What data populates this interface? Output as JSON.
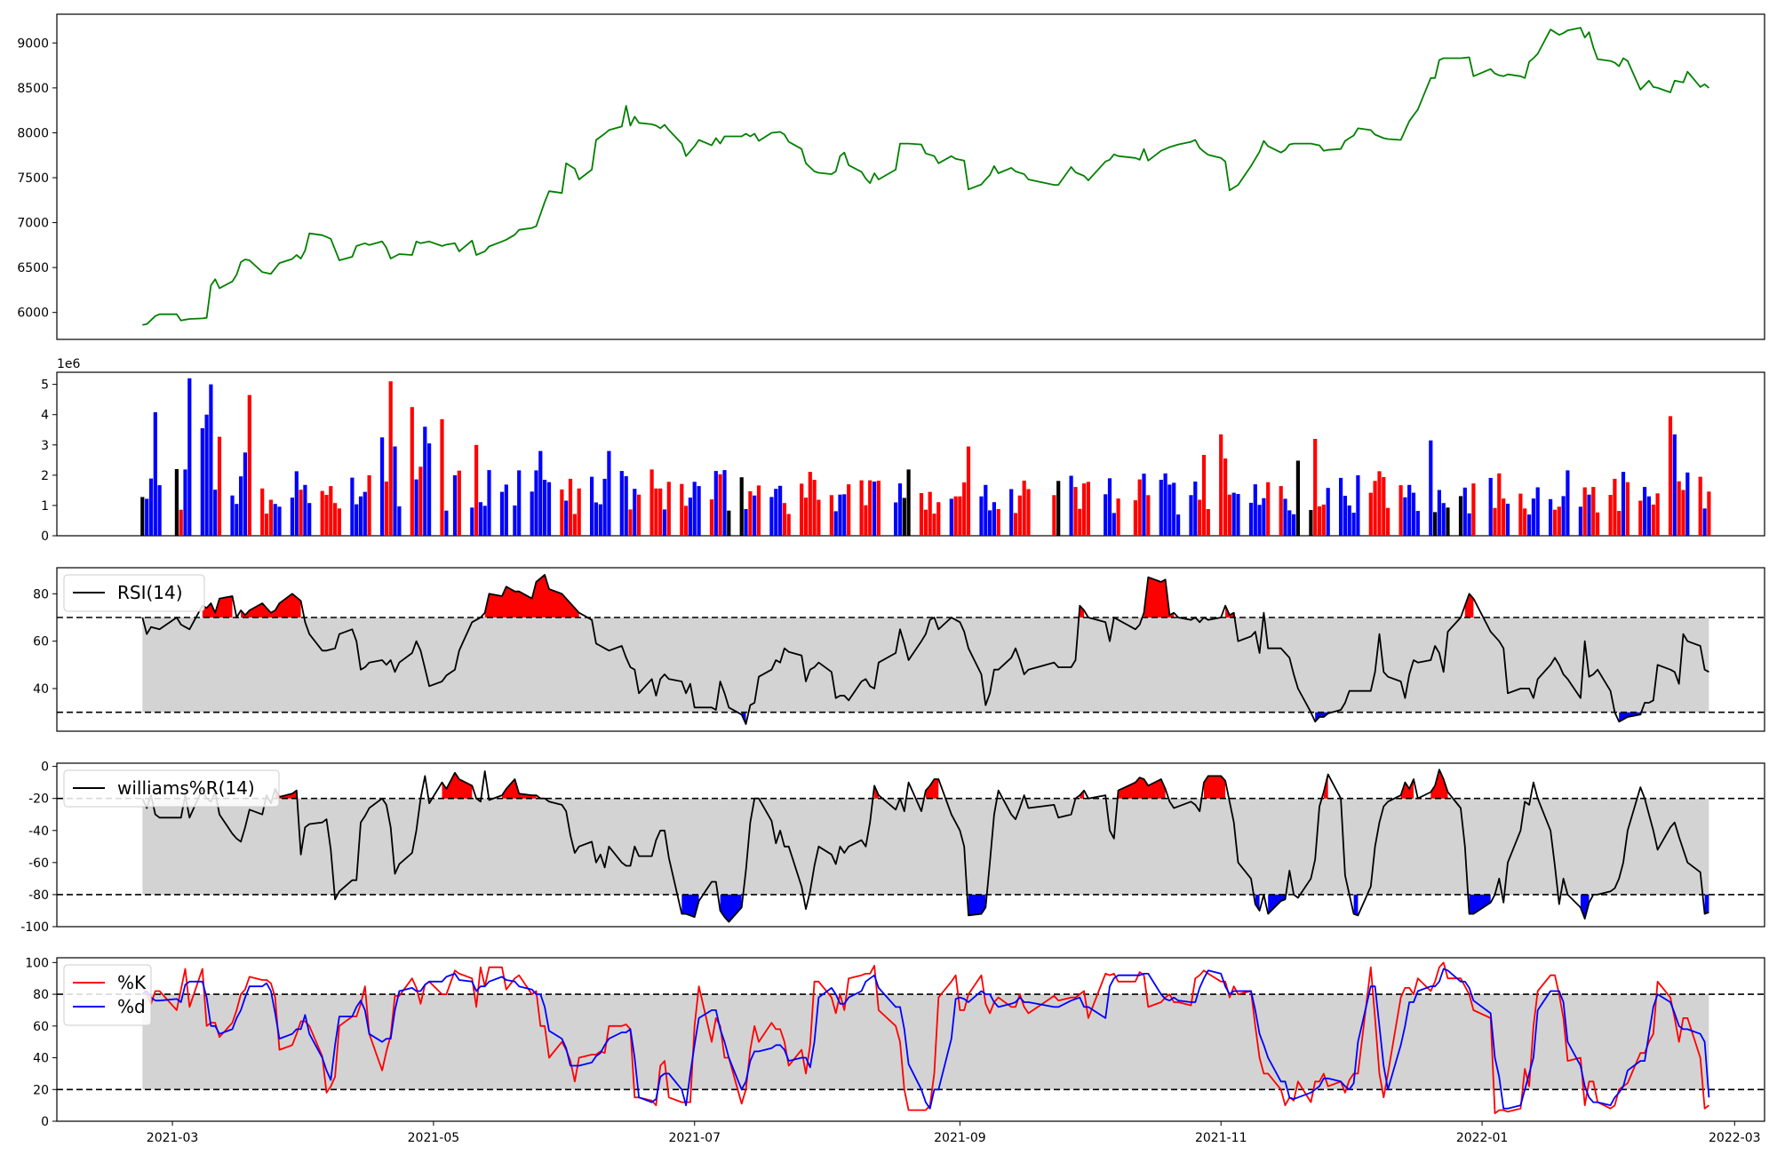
{
  "chart_data": [
    {
      "type": "line",
      "title": "",
      "ylim": [
        5700,
        9320
      ],
      "yticks": [
        6000,
        6500,
        7000,
        7500,
        8000,
        8500,
        9000
      ],
      "x_range": [
        "2021-02-02",
        "2022-03-08"
      ],
      "grid": false,
      "color": "#008000",
      "x": [],
      "series": [
        {
          "values": []
        }
      ]
    },
    {
      "type": "bar",
      "title": "",
      "scale_label": "1e6",
      "ylim": [
        0,
        5.4
      ],
      "yticks": [
        0,
        1,
        2,
        3,
        4,
        5
      ],
      "colors": {
        "up": "#0000ff",
        "down": "#ff0000",
        "flat": "#000000"
      },
      "note": "bar colors: red where close fell, blue where close rose, black where near-flat",
      "x": [],
      "values": []
    },
    {
      "type": "line",
      "title": "",
      "legend": {
        "position": "top-left",
        "labels": [
          "RSI(14)"
        ]
      },
      "ylim": [
        22,
        91
      ],
      "yticks": [
        40,
        60,
        80
      ],
      "thresholds": [
        70,
        30
      ],
      "fills": {
        "band": "#d3d3d3",
        "above": "#ff0000",
        "below": "#0000ff"
      },
      "x": [],
      "series": [
        {
          "name": "RSI(14)",
          "values": []
        }
      ]
    },
    {
      "type": "line",
      "title": "",
      "legend": {
        "position": "top-left",
        "labels": [
          "williams%R(14)"
        ]
      },
      "ylim": [
        -100,
        2
      ],
      "yticks": [
        -100,
        -80,
        -60,
        -40,
        -20,
        0
      ],
      "thresholds": [
        -20,
        -80
      ],
      "fills": {
        "band": "#d3d3d3",
        "above": "#ff0000",
        "below": "#0000ff"
      },
      "x": [],
      "series": [
        {
          "name": "williams%R(14)",
          "values": []
        }
      ]
    },
    {
      "type": "line",
      "title": "",
      "legend": {
        "position": "top-left",
        "labels": [
          "%K",
          "%d"
        ]
      },
      "ylim": [
        0,
        103
      ],
      "yticks": [
        0,
        20,
        40,
        60,
        80,
        100
      ],
      "thresholds": [
        80,
        20
      ],
      "fills": {
        "band": "#d3d3d3"
      },
      "xticks": [
        "2021-03-01",
        "2021-05-01",
        "2021-07-01",
        "2021-09-01",
        "2021-11-01",
        "2022-01-01",
        "2022-03-01"
      ],
      "xtick_labels": [
        "2021-03",
        "2021-05",
        "2021-07",
        "2021-09",
        "2021-11",
        "2022-01",
        "2022-03"
      ],
      "x": [],
      "series": [
        {
          "name": "%K",
          "color": "#ff0000",
          "values": []
        },
        {
          "name": "%d",
          "color": "#0000ff",
          "values": []
        }
      ]
    }
  ]
}
